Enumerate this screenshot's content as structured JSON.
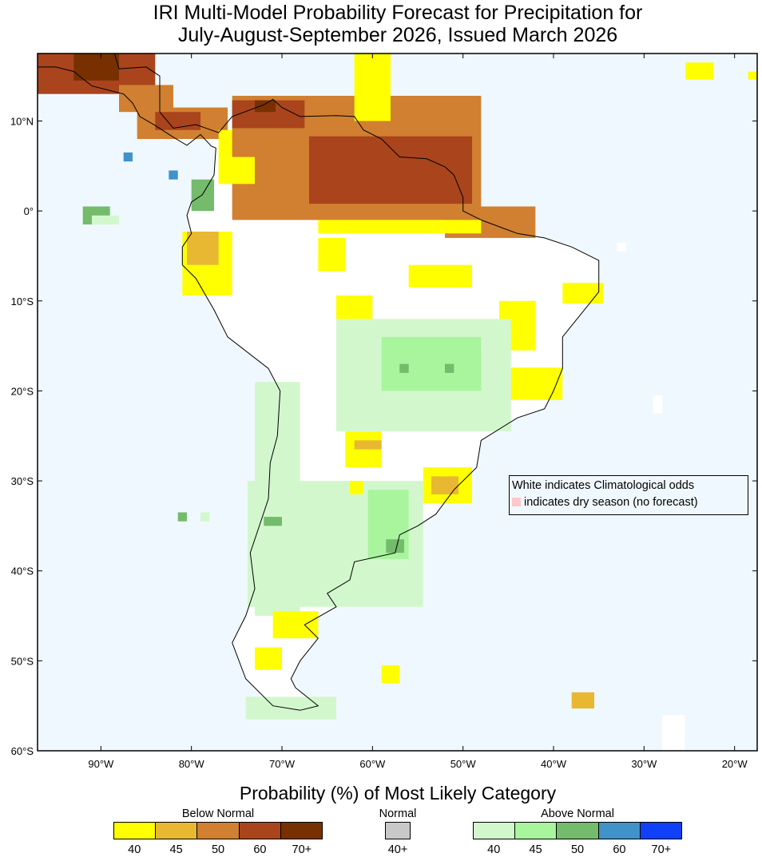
{
  "title": {
    "line1": "IRI Multi-Model Probability Forecast for Precipitation for",
    "line2": "July-August-September 2026, Issued March 2026"
  },
  "map_data": {
    "extent": {
      "lon": [
        -97,
        -17.5
      ],
      "lat": [
        -60,
        17.5
      ]
    },
    "ocean_color": "#f0f8ff",
    "land_color": "#ffffff",
    "lon_ticks": [
      {
        "v": -90,
        "label": "90°W"
      },
      {
        "v": -80,
        "label": "80°W"
      },
      {
        "v": -70,
        "label": "70°W"
      },
      {
        "v": -60,
        "label": "60°W"
      },
      {
        "v": -50,
        "label": "50°W"
      },
      {
        "v": -40,
        "label": "40°W"
      },
      {
        "v": -30,
        "label": "30°W"
      },
      {
        "v": -20,
        "label": "20°W"
      }
    ],
    "lat_ticks": [
      {
        "v": 10,
        "label": "10°N"
      },
      {
        "v": 0,
        "label": "0°"
      },
      {
        "v": -10,
        "label": "10°S"
      },
      {
        "v": -20,
        "label": "20°S"
      },
      {
        "v": -30,
        "label": "30°S"
      },
      {
        "v": -40,
        "label": "40°S"
      },
      {
        "v": -50,
        "label": "50°S"
      },
      {
        "v": -60,
        "label": "60°S"
      }
    ],
    "coastline": [
      [
        -97,
        17.5
      ],
      [
        -88.5,
        17.5
      ],
      [
        -88,
        15.8
      ],
      [
        -85,
        16
      ],
      [
        -83.5,
        15
      ],
      [
        -83.5,
        11
      ],
      [
        -82,
        9.2
      ],
      [
        -79.5,
        9.6
      ],
      [
        -77,
        8.7
      ],
      [
        -75.5,
        10.5
      ],
      [
        -72,
        11.8
      ],
      [
        -71,
        12.4
      ],
      [
        -70,
        11.5
      ],
      [
        -68,
        10.5
      ],
      [
        -64,
        10.6
      ],
      [
        -62,
        10.5
      ],
      [
        -61,
        9
      ],
      [
        -59,
        8
      ],
      [
        -57,
        6
      ],
      [
        -54,
        5.8
      ],
      [
        -52,
        4.9
      ],
      [
        -51,
        4
      ],
      [
        -50,
        1.5
      ],
      [
        -50,
        0
      ],
      [
        -48,
        -1
      ],
      [
        -44,
        -2.5
      ],
      [
        -41,
        -3
      ],
      [
        -38,
        -4
      ],
      [
        -35,
        -5.5
      ],
      [
        -35,
        -9
      ],
      [
        -37,
        -11.5
      ],
      [
        -39,
        -14
      ],
      [
        -39,
        -17.5
      ],
      [
        -40,
        -20
      ],
      [
        -41,
        -22
      ],
      [
        -44,
        -23
      ],
      [
        -48,
        -25.5
      ],
      [
        -48.5,
        -28.5
      ],
      [
        -51,
        -31
      ],
      [
        -53,
        -33.7
      ],
      [
        -55,
        -35
      ],
      [
        -57,
        -36
      ],
      [
        -57.5,
        -38
      ],
      [
        -62,
        -39
      ],
      [
        -62.5,
        -41
      ],
      [
        -65,
        -42.5
      ],
      [
        -64,
        -44
      ],
      [
        -67.5,
        -46
      ],
      [
        -66,
        -47.5
      ],
      [
        -68,
        -50
      ],
      [
        -69,
        -52
      ],
      [
        -68.5,
        -53
      ],
      [
        -66,
        -55
      ],
      [
        -68,
        -55.5
      ],
      [
        -71,
        -55
      ],
      [
        -74,
        -52
      ],
      [
        -75.5,
        -48
      ],
      [
        -74,
        -45
      ],
      [
        -73,
        -42
      ],
      [
        -73.5,
        -38
      ],
      [
        -72.5,
        -35
      ],
      [
        -71.5,
        -32
      ],
      [
        -71.3,
        -28
      ],
      [
        -70.5,
        -25
      ],
      [
        -70.2,
        -20
      ],
      [
        -71.5,
        -17.5
      ],
      [
        -76,
        -14
      ],
      [
        -77.5,
        -11
      ],
      [
        -79.5,
        -7.5
      ],
      [
        -81,
        -6
      ],
      [
        -81,
        -4
      ],
      [
        -80,
        -2.5
      ],
      [
        -80.5,
        -0.5
      ],
      [
        -80,
        1
      ],
      [
        -78.8,
        1.8
      ],
      [
        -77.5,
        4
      ],
      [
        -77.3,
        7
      ],
      [
        -77.8,
        7.2
      ],
      [
        -79,
        8.5
      ],
      [
        -80.5,
        7.3
      ],
      [
        -82,
        8.2
      ],
      [
        -84,
        9.5
      ],
      [
        -85.7,
        10.5
      ],
      [
        -86.5,
        12
      ],
      [
        -87.5,
        13
      ],
      [
        -91,
        13.9
      ],
      [
        -93,
        15.5
      ],
      [
        -95,
        16
      ],
      [
        -97,
        16
      ]
    ],
    "patches": [
      {
        "lon": [
          -97,
          -84
        ],
        "lat": [
          13,
          17.5
        ],
        "cat": "below_60"
      },
      {
        "lon": [
          -93,
          -88
        ],
        "lat": [
          14.5,
          17.5
        ],
        "cat": "below_70"
      },
      {
        "lon": [
          -88,
          -82
        ],
        "lat": [
          11,
          14
        ],
        "cat": "below_50"
      },
      {
        "lon": [
          -86,
          -76
        ],
        "lat": [
          8,
          11.5
        ],
        "cat": "below_50"
      },
      {
        "lon": [
          -84,
          -79
        ],
        "lat": [
          9,
          11
        ],
        "cat": "below_60"
      },
      {
        "lon": [
          -77,
          -74
        ],
        "lat": [
          6,
          9
        ],
        "cat": "below_40"
      },
      {
        "lon": [
          -75.5,
          -48
        ],
        "lat": [
          -1,
          12.8
        ],
        "cat": "below_50"
      },
      {
        "lon": [
          -52,
          -42
        ],
        "lat": [
          -3,
          0.5
        ],
        "cat": "below_50"
      },
      {
        "lon": [
          -75.5,
          -67.5
        ],
        "lat": [
          9.2,
          12.3
        ],
        "cat": "below_60"
      },
      {
        "lon": [
          -73,
          -70.7
        ],
        "lat": [
          11,
          12.3
        ],
        "cat": "below_70"
      },
      {
        "lon": [
          -67,
          -49
        ],
        "lat": [
          0.8,
          8.3
        ],
        "cat": "below_60"
      },
      {
        "lon": [
          -66,
          -48
        ],
        "lat": [
          -2.5,
          -1
        ],
        "cat": "below_40"
      },
      {
        "lon": [
          -77,
          -73
        ],
        "lat": [
          3,
          6
        ],
        "cat": "below_40"
      },
      {
        "lon": [
          -62,
          -58
        ],
        "lat": [
          10,
          17.5
        ],
        "cat": "below_40"
      },
      {
        "lon": [
          -66,
          -63
        ],
        "lat": [
          -6.7,
          -3
        ],
        "cat": "below_40"
      },
      {
        "lon": [
          -56,
          -49
        ],
        "lat": [
          -8.5,
          -6
        ],
        "cat": "below_40"
      },
      {
        "lon": [
          -64,
          -60
        ],
        "lat": [
          -14,
          -9.4
        ],
        "cat": "below_40"
      },
      {
        "lon": [
          -46,
          -42
        ],
        "lat": [
          -15.5,
          -10
        ],
        "cat": "below_40"
      },
      {
        "lon": [
          -44.7,
          -39
        ],
        "lat": [
          -21,
          -17.4
        ],
        "cat": "below_40"
      },
      {
        "lon": [
          -39,
          -34.5
        ],
        "lat": [
          -10.3,
          -8
        ],
        "cat": "below_40"
      },
      {
        "lon": [
          -81,
          -75.5
        ],
        "lat": [
          -9.4,
          -2.3
        ],
        "cat": "below_40"
      },
      {
        "lon": [
          -80.5,
          -77
        ],
        "lat": [
          -6,
          -2.3
        ],
        "cat": "below_45"
      },
      {
        "lon": [
          -64,
          -44.7
        ],
        "lat": [
          -24.5,
          -12
        ],
        "cat": "above_40"
      },
      {
        "lon": [
          -59,
          -48
        ],
        "lat": [
          -20,
          -14
        ],
        "cat": "above_45"
      },
      {
        "lon": [
          -57,
          -56
        ],
        "lat": [
          -18,
          -17
        ],
        "cat": "above_50"
      },
      {
        "lon": [
          -52,
          -51
        ],
        "lat": [
          -18,
          -17
        ],
        "cat": "above_50"
      },
      {
        "lon": [
          -73.8,
          -54.4
        ],
        "lat": [
          -44,
          -30
        ],
        "cat": "above_40"
      },
      {
        "lon": [
          -73,
          -68
        ],
        "lat": [
          -45,
          -19
        ],
        "cat": "above_40"
      },
      {
        "lon": [
          -60.5,
          -56
        ],
        "lat": [
          -38.7,
          -31
        ],
        "cat": "above_45"
      },
      {
        "lon": [
          -58.5,
          -56.5
        ],
        "lat": [
          -38,
          -36.5
        ],
        "cat": "above_50"
      },
      {
        "lon": [
          -72,
          -70
        ],
        "lat": [
          -35,
          -34
        ],
        "cat": "above_50"
      },
      {
        "lon": [
          -74,
          -64
        ],
        "lat": [
          -56.5,
          -54
        ],
        "cat": "above_40"
      },
      {
        "lon": [
          -80,
          -77.5
        ],
        "lat": [
          0,
          3.5
        ],
        "cat": "above_50"
      },
      {
        "lon": [
          -92,
          -89
        ],
        "lat": [
          -1.5,
          0.5
        ],
        "cat": "above_50"
      },
      {
        "lon": [
          -91,
          -88
        ],
        "lat": [
          -1.5,
          -0.5
        ],
        "cat": "above_40"
      },
      {
        "lon": [
          -81.5,
          -80.5
        ],
        "lat": [
          -34.5,
          -33.5
        ],
        "cat": "above_50"
      },
      {
        "lon": [
          -79,
          -78
        ],
        "lat": [
          -34.5,
          -33.5
        ],
        "cat": "above_40"
      },
      {
        "lon": [
          -71,
          -66
        ],
        "lat": [
          -47.5,
          -44.5
        ],
        "cat": "below_40"
      },
      {
        "lon": [
          -73,
          -70
        ],
        "lat": [
          -51,
          -48.5
        ],
        "cat": "below_40"
      },
      {
        "lon": [
          -63,
          -59
        ],
        "lat": [
          -28.5,
          -24.5
        ],
        "cat": "below_40"
      },
      {
        "lon": [
          -62,
          -59
        ],
        "lat": [
          -26.5,
          -25.5
        ],
        "cat": "below_45"
      },
      {
        "lon": [
          -54.4,
          -49
        ],
        "lat": [
          -32.5,
          -28.5
        ],
        "cat": "below_40"
      },
      {
        "lon": [
          -53.5,
          -50.5
        ],
        "lat": [
          -31.5,
          -29.5
        ],
        "cat": "below_45"
      },
      {
        "lon": [
          -62.5,
          -61
        ],
        "lat": [
          -31.5,
          -30
        ],
        "cat": "below_40"
      },
      {
        "lon": [
          -59,
          -57
        ],
        "lat": [
          -52.5,
          -50.5
        ],
        "cat": "below_40"
      },
      {
        "lon": [
          -38,
          -35.5
        ],
        "lat": [
          -55.3,
          -53.5
        ],
        "cat": "below_45"
      },
      {
        "lon": [
          -25.4,
          -22.3
        ],
        "lat": [
          14.6,
          16.5
        ],
        "cat": "below_40"
      },
      {
        "lon": [
          -18.5,
          -17.5
        ],
        "lat": [
          14.6,
          15.5
        ],
        "cat": "below_40"
      },
      {
        "lon": [
          -87.5,
          -86.5
        ],
        "lat": [
          5.5,
          6.5
        ],
        "cat": "above_60"
      },
      {
        "lon": [
          -82.5,
          -81.5
        ],
        "lat": [
          3.5,
          4.5
        ],
        "cat": "above_60"
      },
      {
        "lon": [
          -29,
          -28
        ],
        "lat": [
          -22.5,
          -20.5
        ],
        "cat": "climatology"
      },
      {
        "lon": [
          -28,
          -25.5
        ],
        "lat": [
          -60,
          -56
        ],
        "cat": "climatology"
      },
      {
        "lon": [
          -33,
          -32
        ],
        "lat": [
          -4.5,
          -3.5
        ],
        "cat": "climatology"
      }
    ]
  },
  "note": {
    "line1": "White indicates Climatological odds",
    "line2": "indicates dry season (no forecast)",
    "dry_color": "#ffc8c8"
  },
  "legend": {
    "title": "Probability (%) of Most Likely Category",
    "below": {
      "label": "Below Normal",
      "ticks": [
        "40",
        "45",
        "50",
        "60",
        "70+"
      ],
      "colors": [
        "#ffff00",
        "#e8b832",
        "#d08030",
        "#a9441d",
        "#783000"
      ]
    },
    "normal": {
      "label": "Normal",
      "ticks": [
        "40+"
      ],
      "colors": [
        "#c8c8c8"
      ]
    },
    "above": {
      "label": "Above Normal",
      "ticks": [
        "40",
        "45",
        "50",
        "60",
        "70+"
      ],
      "colors": [
        "#d3f7cd",
        "#a8f59e",
        "#74bb6c",
        "#4092c8",
        "#1040f8"
      ]
    }
  }
}
